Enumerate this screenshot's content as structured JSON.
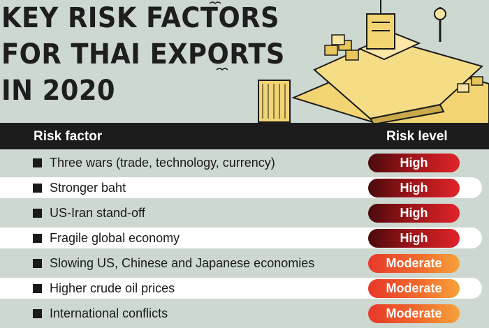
{
  "title_lines": [
    "KEY RISK FACTORS",
    "FOR THAI EXPORTS",
    "IN 2020"
  ],
  "table": {
    "header_factor": "Risk factor",
    "header_level": "Risk level",
    "rows": [
      {
        "factor": "Three wars (trade, technology, currency)",
        "level": "High"
      },
      {
        "factor": "Stronger baht",
        "level": "High"
      },
      {
        "factor": "US-Iran stand-off",
        "level": "High"
      },
      {
        "factor": "Fragile global economy",
        "level": "High"
      },
      {
        "factor": "Slowing US, Chinese and Japanese economies",
        "level": "Moderate"
      },
      {
        "factor": "Higher crude oil prices",
        "level": "Moderate"
      },
      {
        "factor": "International conflicts",
        "level": "Moderate"
      }
    ]
  },
  "colors": {
    "background": "#cdd8d0",
    "header_bar": "#1c1c1c",
    "high": "#9a1418",
    "moderate": "#f06a2c",
    "illustration_yellow": "#f2d472"
  },
  "illustration": "cargo-ship-port-illustration"
}
